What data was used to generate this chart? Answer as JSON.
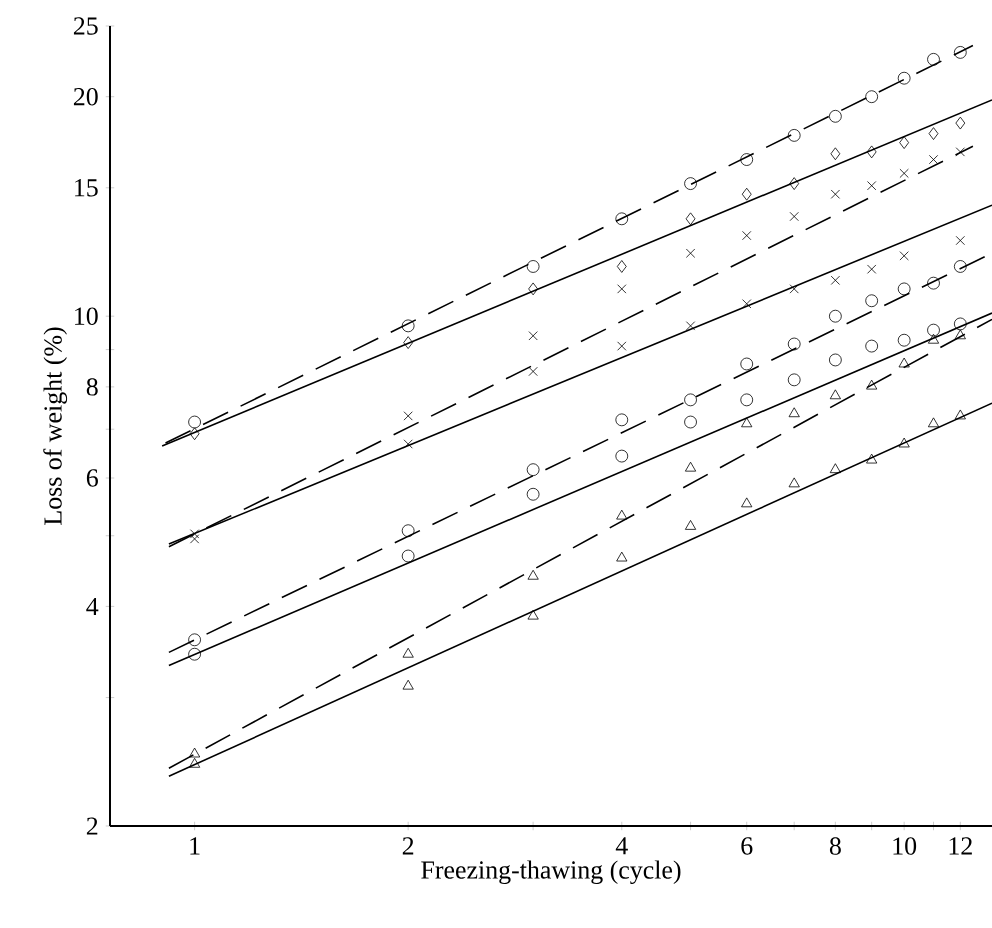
{
  "chart_data": {
    "type": "scatter",
    "xlabel": "Freezing-thawing (cycle)",
    "ylabel": "Loss of weight (%)",
    "log": "xy",
    "grid": false,
    "xlim": [
      0.76,
      13.3
    ],
    "ylim": [
      2,
      25
    ],
    "xticks": [
      1,
      2,
      {
        "value": 3,
        "label": null
      },
      4,
      {
        "value": 5,
        "label": null
      },
      6,
      {
        "value": 7,
        "label": null
      },
      8,
      {
        "value": 9,
        "label": null
      },
      10,
      {
        "value": 11,
        "label": null
      },
      12
    ],
    "yticks": [
      2,
      {
        "value": 3,
        "label": null
      },
      4,
      {
        "value": 5,
        "label": null
      },
      6,
      {
        "value": 7,
        "label": null
      },
      8,
      {
        "value": 9,
        "label": null
      },
      10,
      15,
      20,
      25
    ],
    "series": [
      {
        "type": "scatter",
        "marker": "circle",
        "color": "#000000",
        "x": [
          1,
          2,
          3,
          4,
          5,
          6,
          7,
          8,
          9,
          10,
          11,
          12
        ],
        "values": [
          7.16,
          9.7,
          11.7,
          13.6,
          15.2,
          16.4,
          17.7,
          18.8,
          20.0,
          21.2,
          22.5,
          23.0
        ]
      },
      {
        "type": "line",
        "line_style": "dashed",
        "marker": "none",
        "color": "#000000",
        "x": [
          0.91,
          12.5
        ],
        "values": [
          6.7,
          23.5
        ]
      },
      {
        "type": "scatter",
        "marker": "diamond",
        "color": "#000000",
        "x": [
          1,
          2,
          3,
          4,
          5,
          6,
          7,
          8,
          9,
          10,
          11,
          12
        ],
        "values": [
          6.9,
          9.2,
          10.9,
          11.7,
          13.6,
          14.7,
          15.2,
          16.7,
          16.8,
          17.3,
          17.8,
          18.4
        ]
      },
      {
        "type": "line",
        "line_style": "solid",
        "marker": "none",
        "color": "#000000",
        "x": [
          0.9,
          13.3
        ],
        "values": [
          6.64,
          19.8
        ]
      },
      {
        "type": "scatter",
        "marker": "cross",
        "color": "#000000",
        "x": [
          1,
          2,
          3,
          4,
          5,
          6,
          7,
          8,
          9,
          10,
          11,
          12
        ],
        "values": [
          5.03,
          7.3,
          9.4,
          10.9,
          12.2,
          12.9,
          13.7,
          14.7,
          15.1,
          15.7,
          16.4,
          16.8
        ]
      },
      {
        "type": "line",
        "line_style": "dashed",
        "marker": "none",
        "color": "#000000",
        "x": [
          0.92,
          12.5
        ],
        "values": [
          4.83,
          17.1
        ]
      },
      {
        "type": "scatter",
        "marker": "cross",
        "color": "#000000",
        "x": [
          1,
          2,
          3,
          4,
          5,
          6,
          7,
          8,
          9,
          10,
          12
        ],
        "values": [
          4.95,
          6.68,
          8.4,
          9.1,
          9.7,
          10.4,
          10.9,
          11.2,
          11.6,
          12.1,
          12.7
        ]
      },
      {
        "type": "line",
        "line_style": "solid",
        "marker": "none",
        "color": "#000000",
        "x": [
          0.92,
          13.3
        ],
        "values": [
          4.87,
          14.2
        ]
      },
      {
        "type": "scatter",
        "marker": "circle",
        "color": "#000000",
        "x": [
          1,
          2,
          3,
          4,
          5,
          6,
          7,
          8,
          9,
          10,
          11,
          12
        ],
        "values": [
          3.6,
          5.08,
          6.16,
          7.21,
          7.68,
          8.6,
          9.16,
          10.0,
          10.5,
          10.9,
          11.1,
          11.7
        ]
      },
      {
        "type": "line",
        "line_style": "dashed",
        "marker": "none",
        "color": "#000000",
        "x": [
          0.92,
          13.3
        ],
        "values": [
          3.46,
          12.2
        ]
      },
      {
        "type": "scatter",
        "marker": "circle",
        "color": "#000000",
        "x": [
          1,
          2,
          3,
          4,
          5,
          6,
          7,
          8,
          9,
          10,
          11,
          12
        ],
        "values": [
          3.44,
          4.69,
          5.7,
          6.43,
          7.16,
          7.68,
          8.18,
          8.71,
          9.1,
          9.27,
          9.57,
          9.76
        ]
      },
      {
        "type": "line",
        "line_style": "solid",
        "marker": "none",
        "color": "#000000",
        "x": [
          0.92,
          13.3
        ],
        "values": [
          3.32,
          10.1
        ]
      },
      {
        "type": "scatter",
        "marker": "triangle",
        "color": "#000000",
        "x": [
          1,
          2,
          3,
          4,
          5,
          6,
          7,
          8,
          9,
          10,
          11,
          12
        ],
        "values": [
          2.51,
          3.44,
          4.4,
          5.32,
          6.19,
          7.12,
          7.35,
          7.78,
          8.02,
          8.6,
          9.27,
          9.4
        ]
      },
      {
        "type": "line",
        "line_style": "dashed",
        "marker": "none",
        "color": "#000000",
        "x": [
          0.92,
          13.3
        ],
        "values": [
          2.4,
          9.9
        ]
      },
      {
        "type": "scatter",
        "marker": "triangle",
        "color": "#000000",
        "x": [
          1,
          2,
          3,
          4,
          5,
          6,
          7,
          8,
          9,
          10,
          11,
          12
        ],
        "values": [
          2.43,
          3.11,
          3.88,
          4.66,
          5.15,
          5.53,
          5.89,
          6.16,
          6.35,
          6.68,
          7.12,
          7.3
        ]
      },
      {
        "type": "line",
        "line_style": "solid",
        "marker": "none",
        "color": "#000000",
        "x": [
          0.92,
          13.3
        ],
        "values": [
          2.34,
          7.6
        ]
      }
    ]
  }
}
